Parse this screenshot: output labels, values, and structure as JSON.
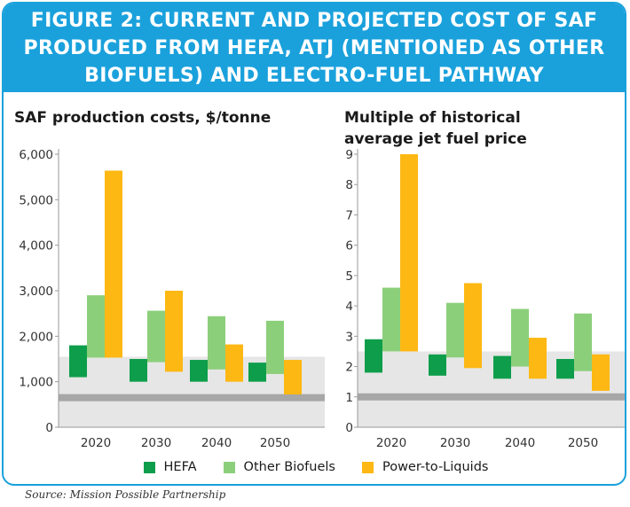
{
  "banner": {
    "title_lines": [
      "FIGURE 2: CURRENT AND PROJECTED COST OF SAF",
      "PRODUCED FROM HEFA, ATJ (MENTIONED AS OTHER",
      "BIOFUELS) AND ELECTRO-FUEL PATHWAY"
    ]
  },
  "source": "Source: Mission Possible Partnership",
  "legend": [
    {
      "name": "HEFA",
      "color": "#0e9e4b"
    },
    {
      "name": "Other Biofuels",
      "color": "#8ccf7b"
    },
    {
      "name": "Power-to-Liquids",
      "color": "#fdb813"
    }
  ],
  "colors": {
    "border": "#1aa1dc",
    "band": "#e6e6e6",
    "band_line": "#a7a7a7",
    "axis": "#9a9a9a"
  },
  "chart_data": [
    {
      "type": "bar",
      "title": "SAF production costs, $/tonne",
      "categories": [
        "2020",
        "2030",
        "2040",
        "2050"
      ],
      "ylim": [
        0,
        6000
      ],
      "yticks": [
        0,
        1000,
        2000,
        3000,
        4000,
        5000,
        6000
      ],
      "ytick_labels": [
        "0",
        "1,000",
        "2,000",
        "3,000",
        "4,000",
        "5,000",
        "6,000"
      ],
      "reference_band": [
        0,
        1550
      ],
      "reference_line": 650,
      "series": [
        {
          "name": "HEFA",
          "color": "#0e9e4b",
          "ranges": [
            [
              1100,
              1800
            ],
            [
              1000,
              1500
            ],
            [
              1000,
              1480
            ],
            [
              1000,
              1420
            ]
          ]
        },
        {
          "name": "Other Biofuels",
          "color": "#8ccf7b",
          "ranges": [
            [
              1530,
              2900
            ],
            [
              1430,
              2560
            ],
            [
              1270,
              2440
            ],
            [
              1170,
              2340
            ]
          ]
        },
        {
          "name": "Power-to-Liquids",
          "color": "#fdb813",
          "ranges": [
            [
              1530,
              5640
            ],
            [
              1220,
              3000
            ],
            [
              1000,
              1820
            ],
            [
              720,
              1480
            ]
          ]
        }
      ]
    },
    {
      "type": "bar",
      "title_lines": [
        "Multiple of historical",
        "average jet fuel price"
      ],
      "categories": [
        "2020",
        "2030",
        "2040",
        "2050"
      ],
      "ylim": [
        0,
        9
      ],
      "yticks": [
        0,
        1,
        2,
        3,
        4,
        5,
        6,
        7,
        8,
        9
      ],
      "ytick_labels": [
        "0",
        "1",
        "2",
        "3",
        "4",
        "5",
        "6",
        "7",
        "8",
        "9"
      ],
      "reference_band": [
        0,
        2.5
      ],
      "reference_line": 1,
      "series": [
        {
          "name": "HEFA",
          "color": "#0e9e4b",
          "ranges": [
            [
              1.8,
              2.9
            ],
            [
              1.7,
              2.4
            ],
            [
              1.6,
              2.35
            ],
            [
              1.6,
              2.25
            ]
          ]
        },
        {
          "name": "Other Biofuels",
          "color": "#8ccf7b",
          "ranges": [
            [
              2.5,
              4.6
            ],
            [
              2.3,
              4.1
            ],
            [
              2.0,
              3.9
            ],
            [
              1.85,
              3.75
            ]
          ]
        },
        {
          "name": "Power-to-Liquids",
          "color": "#fdb813",
          "ranges": [
            [
              2.5,
              9.0
            ],
            [
              1.95,
              4.75
            ],
            [
              1.6,
              2.95
            ],
            [
              1.2,
              2.4
            ]
          ]
        }
      ]
    }
  ]
}
